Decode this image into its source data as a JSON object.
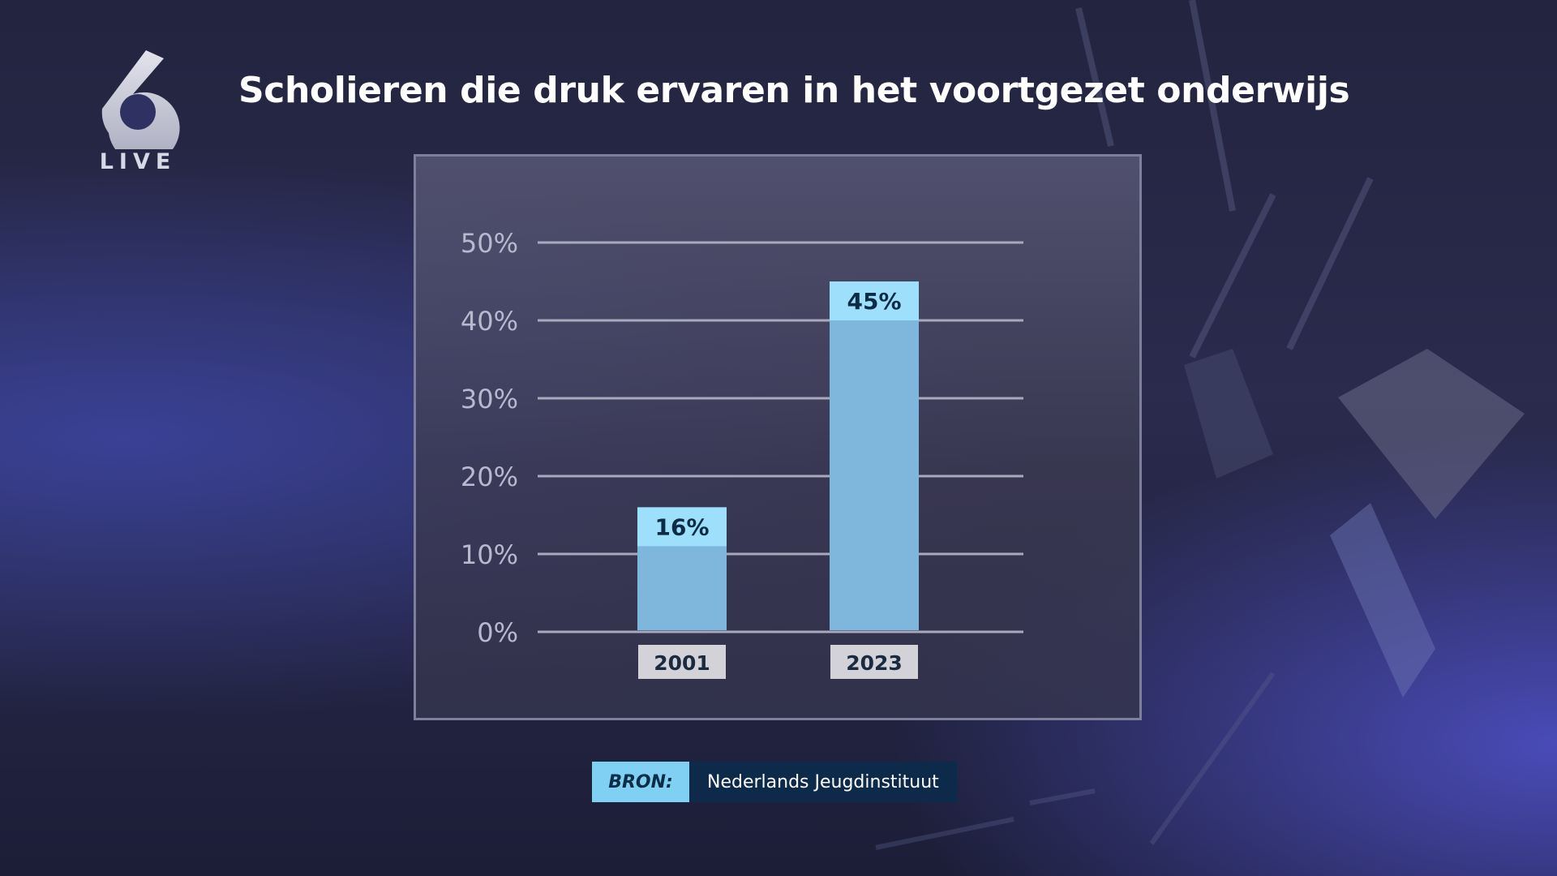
{
  "broadcast": {
    "channel_logo_number": "6",
    "channel_logo_text": "LIVE"
  },
  "title": "Scholieren die druk ervaren in het voortgezet onderwijs",
  "source": {
    "label": "BRON:",
    "value": "Nederlands Jeugdinstituut"
  },
  "colors": {
    "bar": "#7eb6dc",
    "bar_label_box": "#9ee0fb",
    "bar_label_text": "#0c2c45",
    "category_box": "#d2d2d8",
    "gridline": "#a8a9bd",
    "tick_text": "#b8b9cf",
    "source_label_bg": "#7fd0f2",
    "source_value_bg": "#0e2a4a"
  },
  "chart_data": {
    "type": "bar",
    "title": "Scholieren die druk ervaren in het voortgezet onderwijs",
    "categories": [
      "2001",
      "2023"
    ],
    "values": [
      16,
      45
    ],
    "value_labels": [
      "16%",
      "45%"
    ],
    "ylim": [
      0,
      50
    ],
    "yticks": [
      0,
      10,
      20,
      30,
      40,
      50
    ],
    "ytick_labels": [
      "0%",
      "10%",
      "20%",
      "30%",
      "40%",
      "50%"
    ],
    "xlabel": "",
    "ylabel": "",
    "grid": true,
    "legend": "none"
  }
}
